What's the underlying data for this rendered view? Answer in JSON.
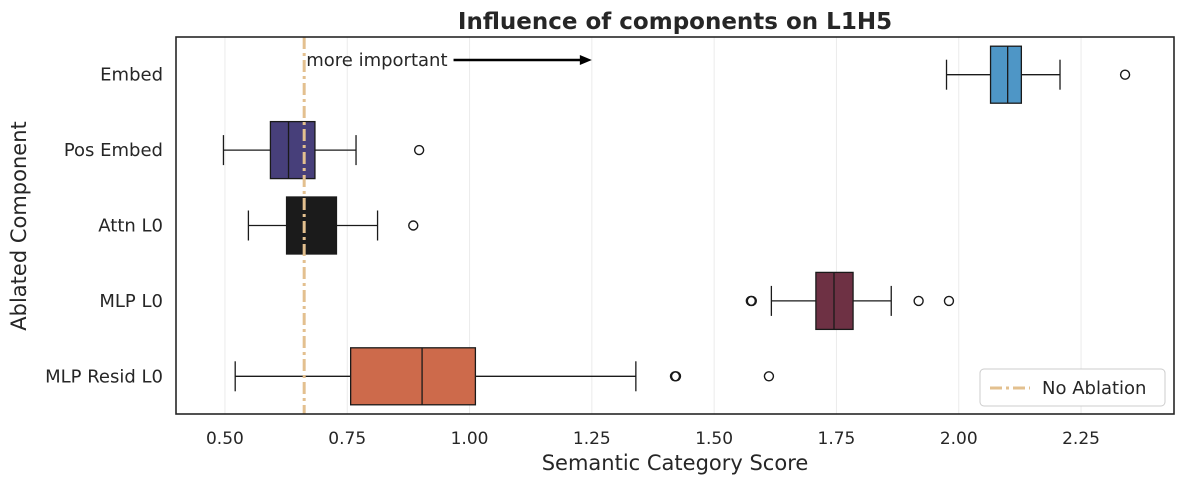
{
  "chart_data": {
    "type": "box",
    "title": "Influence of components on L1H5",
    "xlabel": "Semantic Category Score",
    "ylabel": "Ablated Component",
    "xlim": [
      0.4,
      2.44
    ],
    "xticks": [
      "0.50",
      "0.75",
      "1.00",
      "1.25",
      "1.50",
      "1.75",
      "2.00",
      "2.25"
    ],
    "xtick_values": [
      0.5,
      0.75,
      1.0,
      1.25,
      1.5,
      1.75,
      2.0,
      2.25
    ],
    "grid": "vertical",
    "categories": [
      "Embed",
      "Pos Embed",
      "Attn L0",
      "MLP L0",
      "MLP Resid L0"
    ],
    "boxes": [
      {
        "label": "Embed",
        "whisker_low": 1.975,
        "q1": 2.065,
        "median": 2.1,
        "q3": 2.128,
        "whisker_high": 2.207,
        "outliers": [
          2.34
        ],
        "color": "#4e96c6"
      },
      {
        "label": "Pos Embed",
        "whisker_low": 0.497,
        "q1": 0.593,
        "median": 0.63,
        "q3": 0.684,
        "whisker_high": 0.768,
        "outliers": [
          0.897
        ],
        "color": "#473f7a"
      },
      {
        "label": "Attn L0",
        "whisker_low": 0.548,
        "q1": 0.626,
        "median": 0.66,
        "q3": 0.728,
        "whisker_high": 0.812,
        "outliers": [
          0.885
        ],
        "color": "#1b1b1b"
      },
      {
        "label": "MLP L0",
        "whisker_low": 1.617,
        "q1": 1.708,
        "median": 1.745,
        "q3": 1.784,
        "whisker_high": 1.862,
        "outliers": [
          1.575,
          1.577,
          1.918,
          1.98
        ],
        "color": "#6e3144"
      },
      {
        "label": "MLP Resid L0",
        "whisker_low": 0.521,
        "q1": 0.757,
        "median": 0.903,
        "q3": 1.012,
        "whisker_high": 1.34,
        "outliers": [
          1.42,
          1.422,
          1.612
        ],
        "color": "#cd6a4b"
      }
    ],
    "reference_line": {
      "value": 0.662,
      "label": "No Ablation",
      "color": "#e3c08f",
      "style": "dash-dot"
    },
    "annotation": {
      "text": "more important",
      "arrow_from": 1.0,
      "arrow_to": 1.25
    },
    "legend": {
      "position": "bottom-right",
      "entries": [
        "No Ablation"
      ]
    }
  }
}
